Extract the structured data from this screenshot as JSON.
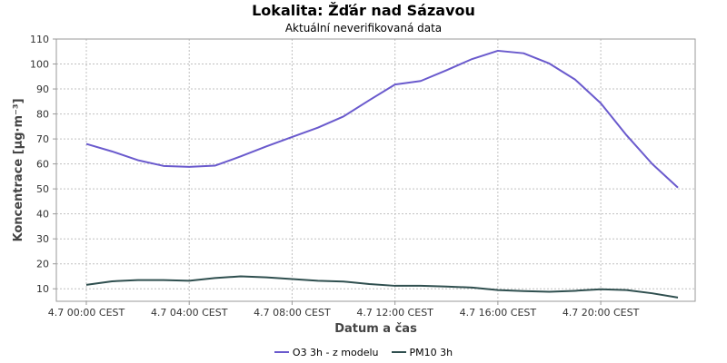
{
  "chart_data": {
    "type": "line",
    "title": "Lokalita: Žďár nad Sázavou",
    "subtitle": "Aktuální neverifikovaná data",
    "xlabel": "Datum a čas",
    "ylabel": "Koncentrace [µg·m⁻³]",
    "ylim": [
      5,
      110
    ],
    "y_ticks": [
      10,
      20,
      30,
      40,
      50,
      60,
      70,
      80,
      90,
      100,
      110
    ],
    "xlim": [
      0,
      24
    ],
    "x_tick_values": [
      0,
      4,
      8,
      12,
      16,
      20
    ],
    "x_tick_labels": [
      "4.7 00:00 CEST",
      "4.7 04:00 CEST",
      "4.7 08:00 CEST",
      "4.7 12:00 CEST",
      "4.7 16:00 CEST",
      "4.7 20:00 CEST"
    ],
    "grid": true,
    "legend_position": "bottom",
    "x": [
      0,
      1,
      2,
      3,
      4,
      5,
      6,
      7,
      8,
      9,
      10,
      11,
      12,
      13,
      14,
      15,
      16,
      17,
      18,
      19,
      20,
      21,
      22,
      23
    ],
    "series": [
      {
        "name": "O3 3h - z modelu",
        "color": "#6a5acd",
        "values": [
          68,
          65,
          61.5,
          59.2,
          58.8,
          59.3,
          63,
          67,
          70.8,
          74.5,
          79,
          85.5,
          91.8,
          93.2,
          97.5,
          102,
          105.3,
          104.3,
          100.2,
          93.8,
          84.3,
          71.5,
          60,
          50.5
        ]
      },
      {
        "name": "PM10 3h",
        "color": "#2f4f4f",
        "values": [
          11.6,
          13,
          13.5,
          13.5,
          13.2,
          14.3,
          15,
          14.6,
          13.9,
          13.2,
          12.9,
          11.9,
          11.2,
          11.2,
          10.9,
          10.5,
          9.5,
          9.1,
          8.8,
          9.2,
          9.8,
          9.5,
          8.2,
          6.5
        ]
      }
    ]
  }
}
